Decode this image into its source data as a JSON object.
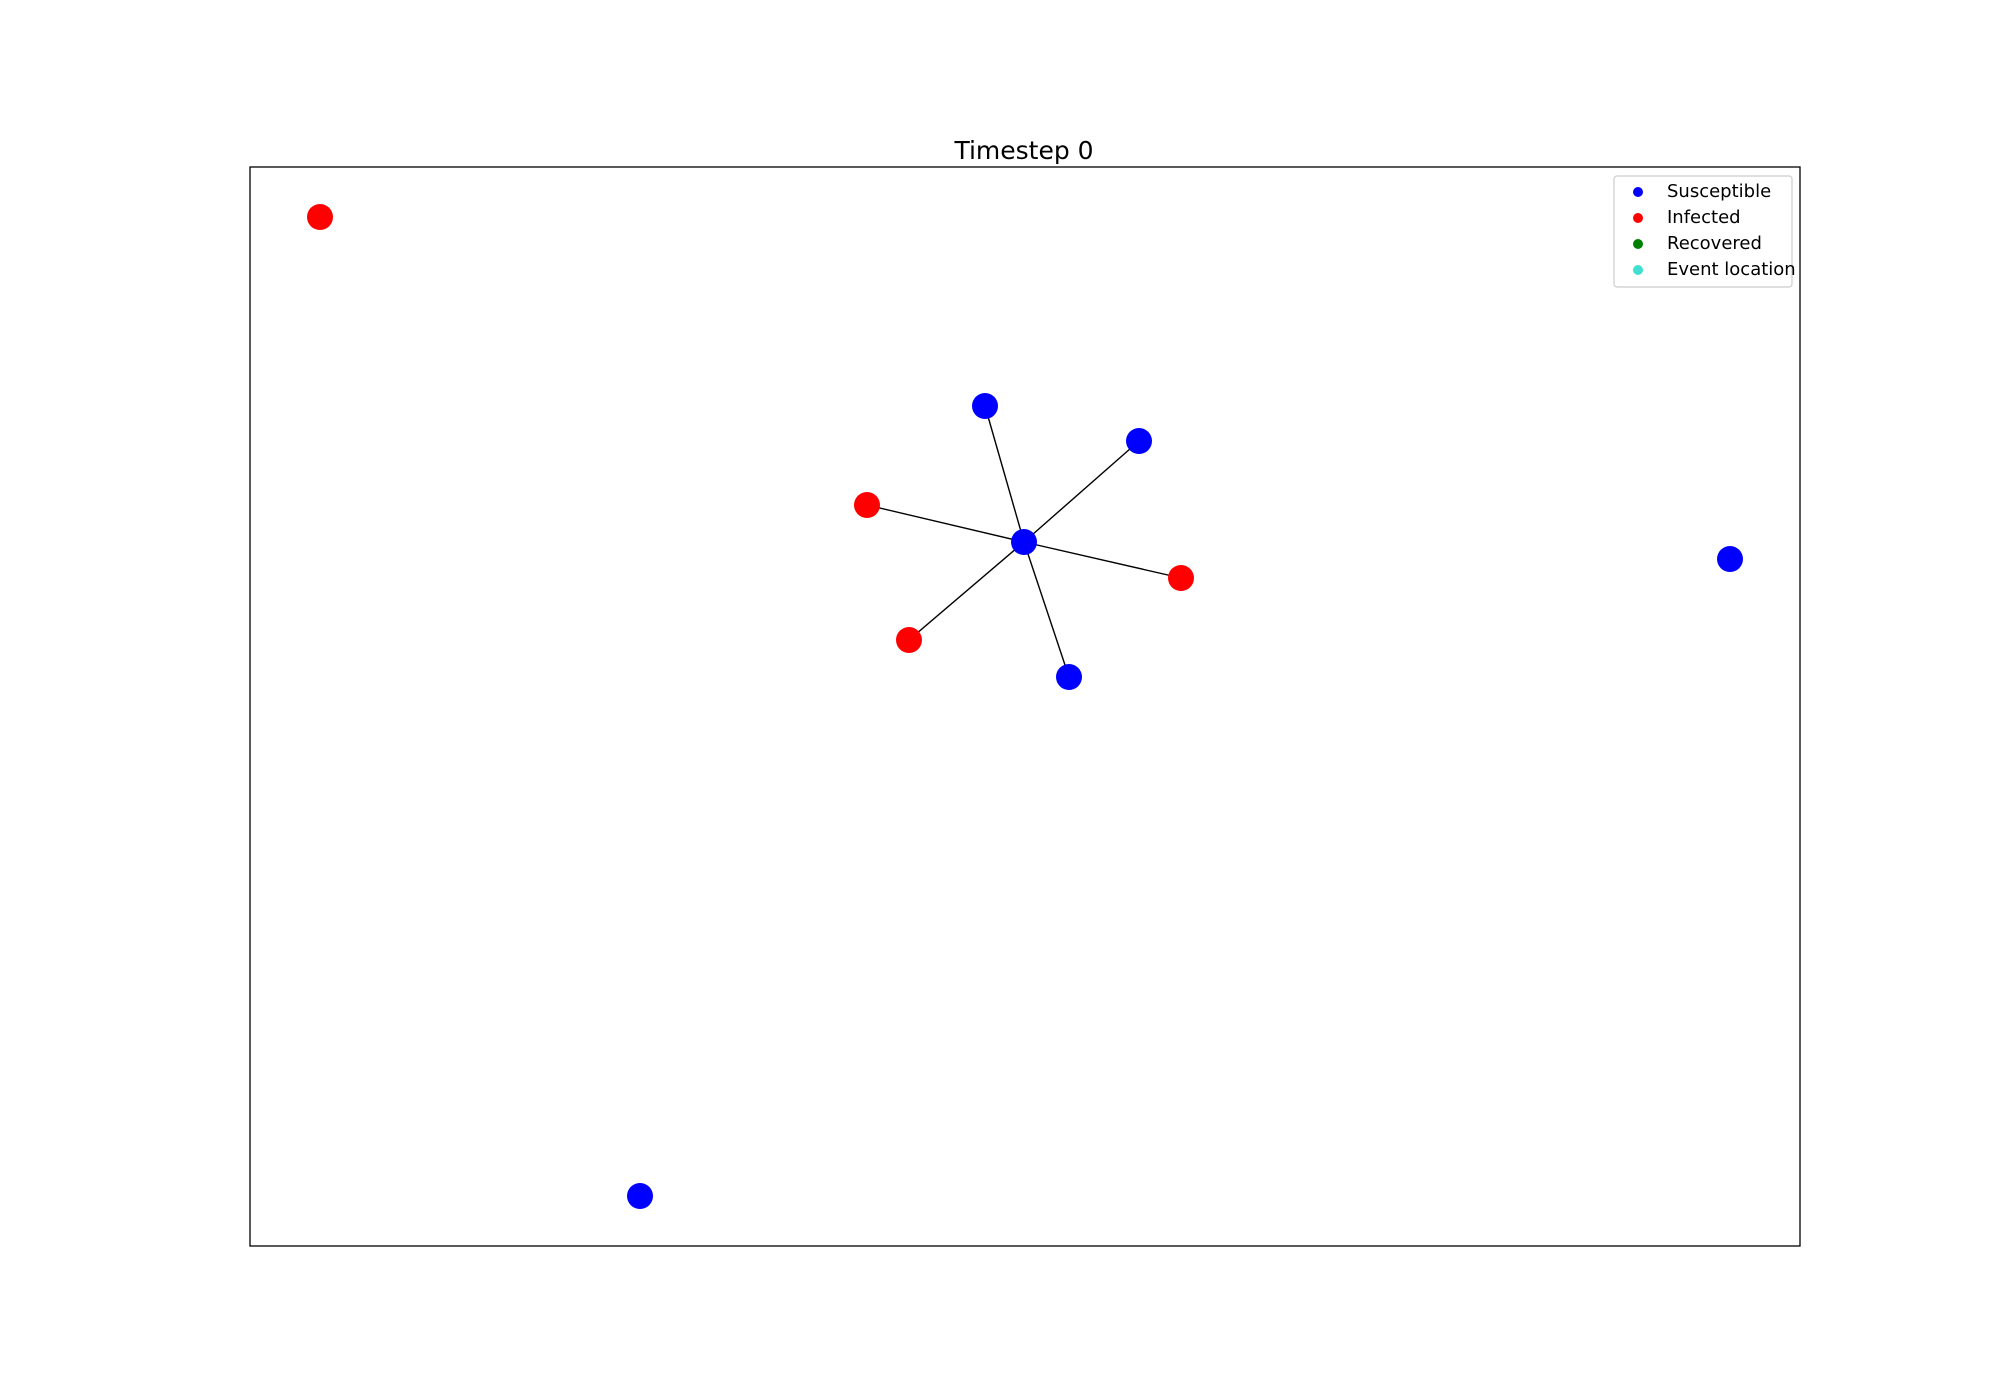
{
  "title": "Timestep 0",
  "legend": [
    {
      "label": "Susceptible",
      "color": "#0000ff"
    },
    {
      "label": "Infected",
      "color": "#ff0000"
    },
    {
      "label": "Recovered",
      "color": "#008000"
    },
    {
      "label": "Event location",
      "color": "#40e0d0"
    }
  ],
  "nodes": [
    {
      "color": "#ff0000"
    },
    {
      "color": "#0000ff"
    },
    {
      "color": "#0000ff"
    },
    {
      "color": "#ff0000"
    },
    {
      "color": "#0000ff"
    },
    {
      "color": "#ff0000"
    },
    {
      "color": "#ff0000"
    },
    {
      "color": "#0000ff"
    },
    {
      "color": "#0000ff"
    },
    {
      "color": "#0000ff"
    }
  ]
}
